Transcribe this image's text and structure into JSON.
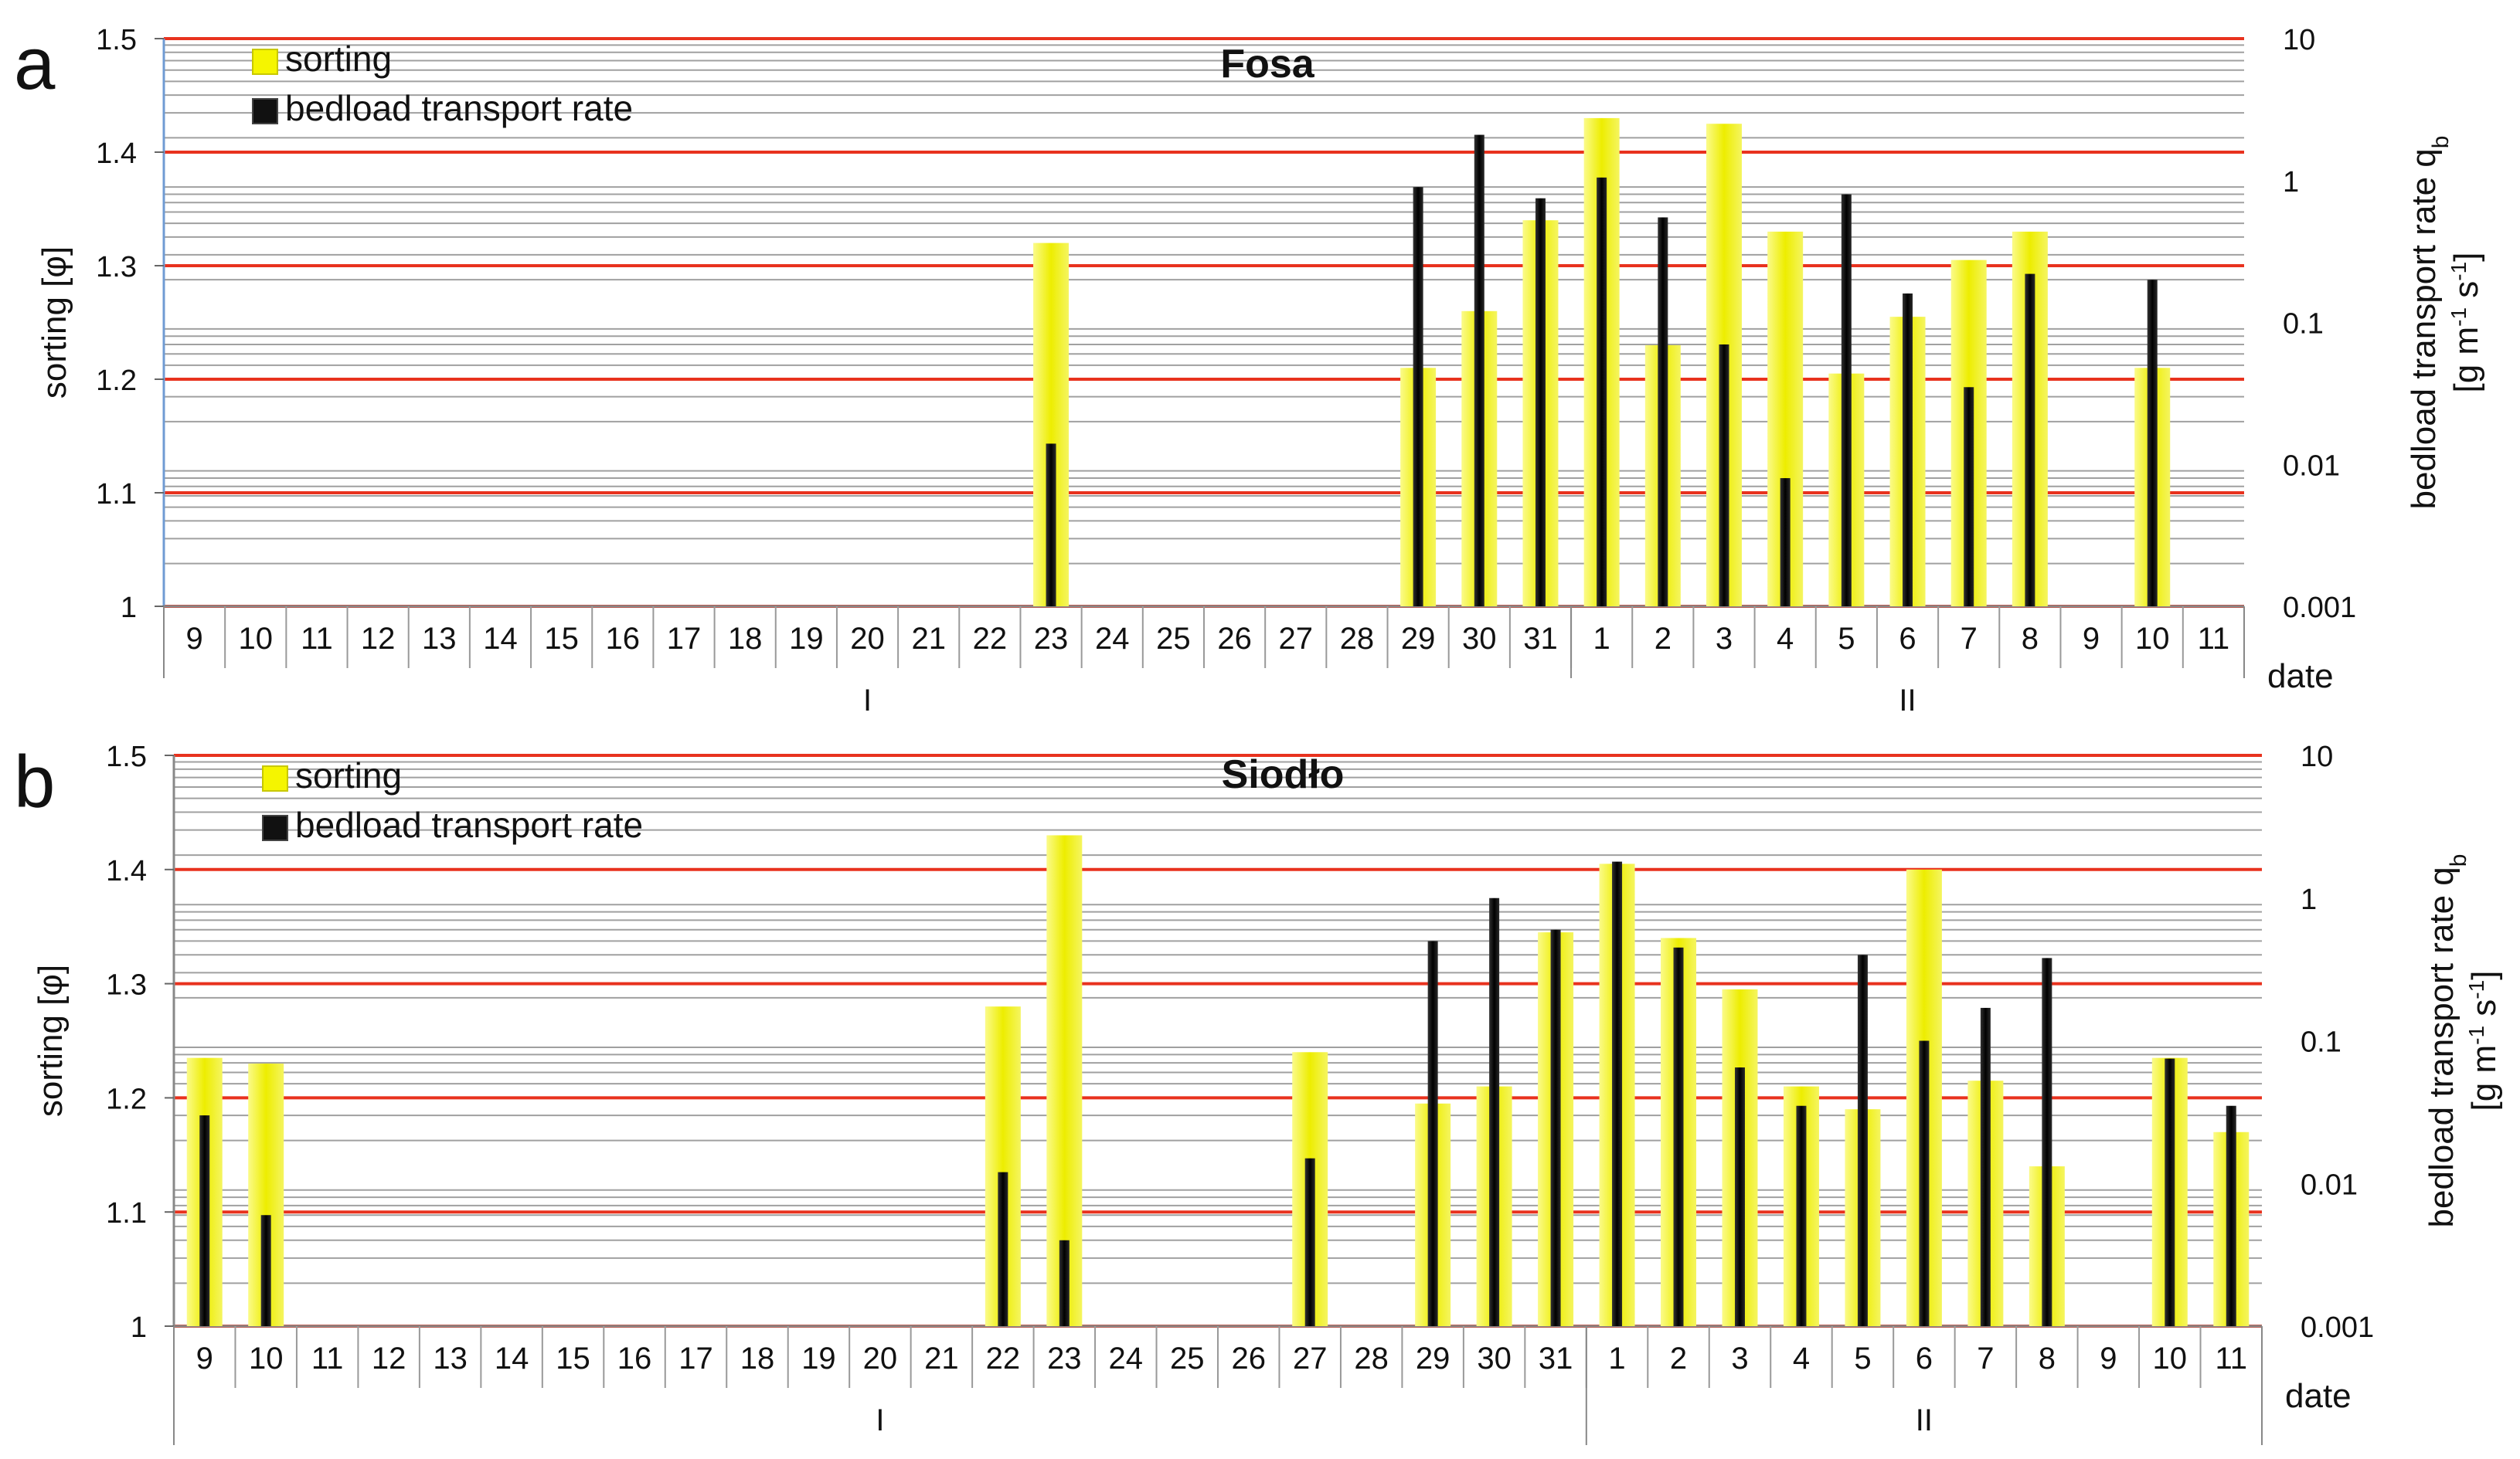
{
  "chart_data": [
    {
      "panel_letter": "a",
      "type": "bar",
      "title": "Fosa",
      "ylabel_left": "sorting [φ]",
      "ylabel_right_line1": "bedload transport rate q",
      "ylabel_right_sub": "b",
      "ylabel_right_line2_parts": [
        "[g m",
        "-1",
        " s",
        "-1",
        "]"
      ],
      "xlabel": "date",
      "ylim_left": [
        1,
        1.5
      ],
      "yticks_left": [
        "1",
        "1.1",
        "1.2",
        "1.3",
        "1.4",
        "1.5"
      ],
      "ylim_right": [
        0.001,
        10
      ],
      "right_scale": "log",
      "yticks_right": [
        "0.001",
        "0.01",
        "0.1",
        "1",
        "10"
      ],
      "categories": [
        "9",
        "10",
        "11",
        "12",
        "13",
        "14",
        "15",
        "16",
        "17",
        "18",
        "19",
        "20",
        "21",
        "22",
        "23",
        "24",
        "25",
        "26",
        "27",
        "28",
        "29",
        "30",
        "31",
        "1",
        "2",
        "3",
        "4",
        "5",
        "6",
        "7",
        "8",
        "9",
        "10",
        "11"
      ],
      "month_groups": [
        {
          "label": "I",
          "span": [
            0,
            22
          ]
        },
        {
          "label": "II",
          "span": [
            23,
            33
          ]
        }
      ],
      "series": [
        {
          "name": "sorting",
          "axis": "left",
          "color": "#f5f500",
          "values": [
            null,
            null,
            null,
            null,
            null,
            null,
            null,
            null,
            null,
            null,
            null,
            null,
            null,
            null,
            1.32,
            null,
            null,
            null,
            null,
            null,
            1.21,
            1.26,
            1.34,
            1.43,
            1.23,
            1.425,
            1.33,
            1.205,
            1.255,
            1.305,
            1.33,
            null,
            1.21,
            null
          ]
        },
        {
          "name": "bedload transport rate",
          "axis": "right",
          "color": "#111111",
          "values": [
            null,
            null,
            null,
            null,
            null,
            null,
            null,
            null,
            null,
            null,
            null,
            null,
            null,
            null,
            0.014,
            null,
            null,
            null,
            null,
            null,
            0.9,
            2.1,
            0.75,
            1.05,
            0.55,
            0.07,
            0.008,
            0.8,
            0.16,
            0.035,
            0.22,
            null,
            0.2,
            null
          ]
        }
      ],
      "gridlines": {
        "major_color": "#e8321e",
        "minor_color": "#a0a0a0"
      }
    },
    {
      "panel_letter": "b",
      "type": "bar",
      "title": "Siodło",
      "ylabel_left": "sorting [φ]",
      "ylabel_right_line1": "bedload transport rate q",
      "ylabel_right_sub": "b",
      "ylabel_right_line2_parts": [
        "[g m",
        "-1",
        " s",
        "-1",
        "]"
      ],
      "xlabel": "date",
      "ylim_left": [
        1,
        1.5
      ],
      "yticks_left": [
        "1",
        "1.1",
        "1.2",
        "1.3",
        "1.4",
        "1.5"
      ],
      "ylim_right": [
        0.001,
        10
      ],
      "right_scale": "log",
      "yticks_right": [
        "0.001",
        "0.01",
        "0.1",
        "1",
        "10"
      ],
      "categories": [
        "9",
        "10",
        "11",
        "12",
        "13",
        "14",
        "15",
        "16",
        "17",
        "18",
        "19",
        "20",
        "21",
        "22",
        "23",
        "24",
        "25",
        "26",
        "27",
        "28",
        "29",
        "30",
        "31",
        "1",
        "2",
        "3",
        "4",
        "5",
        "6",
        "7",
        "8",
        "9",
        "10",
        "11"
      ],
      "month_groups": [
        {
          "label": "I",
          "span": [
            0,
            22
          ]
        },
        {
          "label": "II",
          "span": [
            23,
            33
          ]
        }
      ],
      "series": [
        {
          "name": "sorting",
          "axis": "left",
          "color": "#f5f500",
          "values": [
            1.235,
            1.23,
            null,
            null,
            null,
            null,
            null,
            null,
            null,
            null,
            null,
            null,
            null,
            1.28,
            1.43,
            null,
            null,
            null,
            1.24,
            null,
            1.195,
            1.21,
            1.345,
            1.405,
            1.34,
            1.295,
            1.21,
            1.19,
            1.4,
            1.215,
            1.14,
            null,
            1.235,
            1.17
          ]
        },
        {
          "name": "bedload transport rate",
          "axis": "right",
          "color": "#111111",
          "values": [
            0.03,
            0.006,
            null,
            null,
            null,
            null,
            null,
            null,
            null,
            null,
            null,
            null,
            null,
            0.012,
            0.004,
            null,
            null,
            null,
            0.015,
            null,
            0.5,
            1.0,
            0.6,
            1.8,
            0.45,
            0.065,
            0.035,
            0.4,
            0.1,
            0.17,
            0.38,
            null,
            0.075,
            0.035
          ]
        }
      ],
      "gridlines": {
        "major_color": "#e8321e",
        "minor_color": "#a0a0a0"
      }
    }
  ]
}
